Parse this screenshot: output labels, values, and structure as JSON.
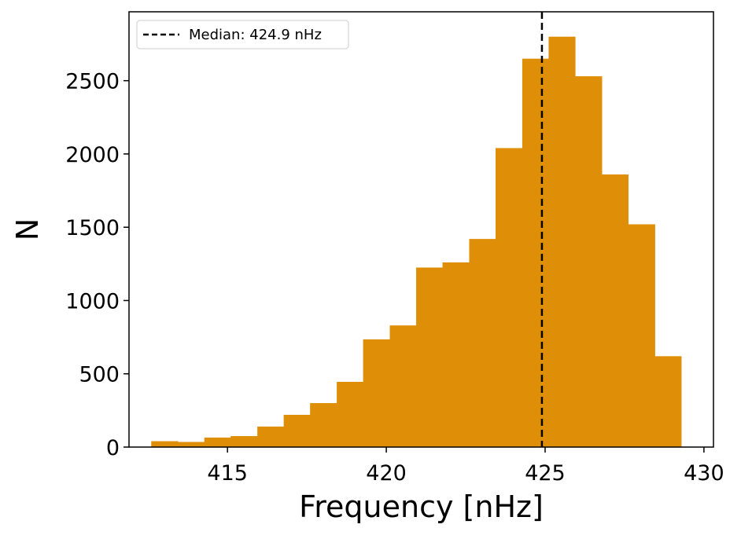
{
  "chart_data": {
    "type": "bar",
    "title": "",
    "xlabel": "Frequency [nHz]",
    "ylabel": "N",
    "xlim": [
      411.9,
      430.3
    ],
    "ylim": [
      0,
      2970
    ],
    "xticks": [
      415,
      420,
      425,
      430
    ],
    "yticks": [
      0,
      500,
      1000,
      1500,
      2000,
      2500
    ],
    "grid": false,
    "bar_color": "#DF8E07",
    "bin_edges": [
      412.6,
      413.43,
      414.27,
      415.1,
      415.94,
      416.77,
      417.6,
      418.44,
      419.27,
      420.11,
      420.94,
      421.77,
      422.61,
      423.44,
      424.28,
      425.11,
      425.94,
      426.78,
      427.61,
      428.45,
      429.28
    ],
    "values": [
      40,
      35,
      65,
      75,
      140,
      220,
      300,
      445,
      735,
      830,
      1225,
      1260,
      1420,
      2040,
      2650,
      2800,
      2530,
      1860,
      1520,
      620
    ],
    "median": {
      "value": 424.9,
      "label": "Median: 424.9 nHz",
      "color": "#000000",
      "style": "dashed"
    },
    "legend": {
      "placement": "upper-left",
      "entries": [
        "Median: 424.9 nHz"
      ]
    }
  }
}
